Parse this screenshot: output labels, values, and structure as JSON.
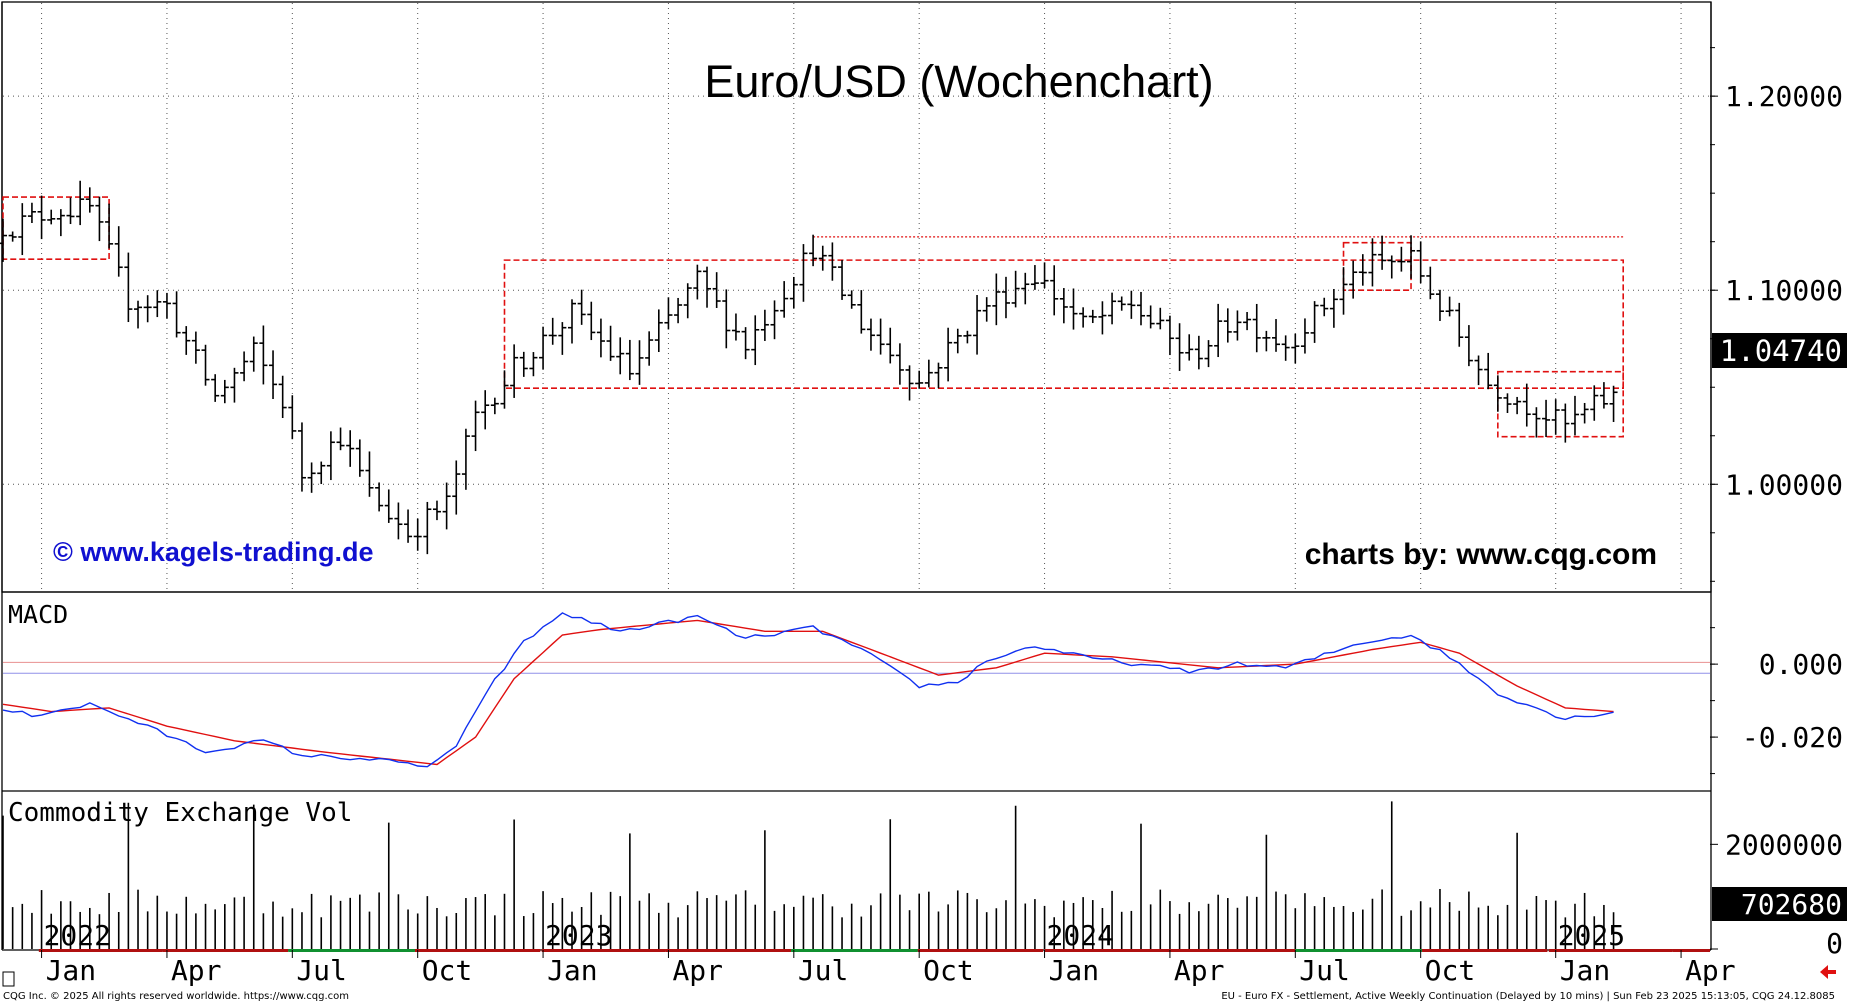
{
  "colors": {
    "bars": "#000000",
    "box": "#e01010",
    "macd": "#1030f0",
    "signal": "#e01010",
    "link": "#1010d0",
    "grid": "#555555",
    "price_tag_bg": "#000000",
    "price_tag_fg": "#ffffff"
  },
  "chart_data": [
    {
      "type": "ohlc",
      "title": "Euro/USD (Wochenchart)",
      "watermark_left": "© www.kagels-trading.de",
      "watermark_right": "charts by: www.cqg.com",
      "y_ticks": [
        "1.20000",
        "1.10000",
        "1.00000"
      ],
      "y_tick_values": [
        1.2,
        1.1,
        1.0
      ],
      "ylim": [
        0.945,
        1.248
      ],
      "last_price": 1.0474,
      "last_price_label": "1.04740",
      "grid": true,
      "anchors": [
        [
          "2021-12-13",
          1.133
        ],
        [
          "2022-01-10",
          1.141
        ],
        [
          "2022-02-07",
          1.142
        ],
        [
          "2022-03-07",
          1.095
        ],
        [
          "2022-04-04",
          1.092
        ],
        [
          "2022-05-09",
          1.045
        ],
        [
          "2022-06-06",
          1.068
        ],
        [
          "2022-06-27",
          1.043
        ],
        [
          "2022-07-11",
          1.005
        ],
        [
          "2022-08-08",
          1.025
        ],
        [
          "2022-08-29",
          0.995
        ],
        [
          "2022-09-26",
          0.975
        ],
        [
          "2022-10-24",
          0.99
        ],
        [
          "2022-11-14",
          1.035
        ],
        [
          "2022-12-12",
          1.06
        ],
        [
          "2023-01-23",
          1.088
        ],
        [
          "2023-03-06",
          1.058
        ],
        [
          "2023-04-24",
          1.105
        ],
        [
          "2023-05-29",
          1.072
        ],
        [
          "2023-07-17",
          1.122
        ],
        [
          "2023-08-21",
          1.083
        ],
        [
          "2023-10-02",
          1.052
        ],
        [
          "2023-11-20",
          1.093
        ],
        [
          "2023-12-25",
          1.108
        ],
        [
          "2024-01-29",
          1.082
        ],
        [
          "2024-03-04",
          1.093
        ],
        [
          "2024-04-15",
          1.065
        ],
        [
          "2024-05-20",
          1.087
        ],
        [
          "2024-06-24",
          1.072
        ],
        [
          "2024-08-19",
          1.112
        ],
        [
          "2024-09-23",
          1.116
        ],
        [
          "2024-10-14",
          1.092
        ],
        [
          "2024-11-18",
          1.052
        ],
        [
          "2025-01-13",
          1.03
        ],
        [
          "2025-02-17",
          1.047
        ]
      ],
      "boxes": [
        {
          "from": "2021-12-06",
          "to": "2022-02-21",
          "high": 1.148,
          "low": 1.116
        },
        {
          "from": "2022-12-05",
          "to": "2025-02-24",
          "high": 1.1155,
          "low": 1.0495
        },
        {
          "from": "2024-08-05",
          "to": "2024-09-23",
          "high": 1.1245,
          "low": 1.1
        },
        {
          "from": "2024-11-25",
          "to": "2025-02-24",
          "high": 1.058,
          "low": 1.0245
        }
      ],
      "lines": [
        {
          "from": "2023-07-17",
          "to": "2025-02-24",
          "value": 1.1275
        }
      ]
    },
    {
      "type": "line",
      "title": "MACD",
      "series": [],
      "y_ticks": [
        "0.000",
        "-0.020"
      ],
      "y_tick_values": [
        0.0,
        -0.02
      ],
      "ylim": [
        -0.0345,
        0.0195
      ],
      "reference_lines": [
        0.0005,
        -0.0025
      ],
      "macd_anchors": [
        [
          "2021-12-06",
          -0.0125
        ],
        [
          "2021-12-27",
          -0.014
        ],
        [
          "2022-02-07",
          -0.011
        ],
        [
          "2022-03-14",
          -0.016
        ],
        [
          "2022-05-02",
          -0.024
        ],
        [
          "2022-06-13",
          -0.021
        ],
        [
          "2022-07-11",
          -0.025
        ],
        [
          "2022-08-29",
          -0.026
        ],
        [
          "2022-10-10",
          -0.028
        ],
        [
          "2022-10-31",
          -0.023
        ],
        [
          "2022-11-21",
          -0.008
        ],
        [
          "2022-12-19",
          0.006
        ],
        [
          "2023-01-16",
          0.014
        ],
        [
          "2023-02-27",
          0.009
        ],
        [
          "2023-04-24",
          0.013
        ],
        [
          "2023-05-29",
          0.007
        ],
        [
          "2023-07-17",
          0.01
        ],
        [
          "2023-08-21",
          0.004
        ],
        [
          "2023-10-02",
          -0.006
        ],
        [
          "2023-10-30",
          -0.005
        ],
        [
          "2023-11-20",
          0.001
        ],
        [
          "2023-12-25",
          0.005
        ],
        [
          "2024-01-29",
          0.002
        ],
        [
          "2024-04-15",
          -0.002
        ],
        [
          "2024-05-20",
          0.0
        ],
        [
          "2024-06-24",
          -0.001
        ],
        [
          "2024-08-19",
          0.006
        ],
        [
          "2024-09-23",
          0.008
        ],
        [
          "2024-10-21",
          0.002
        ],
        [
          "2024-11-25",
          -0.008
        ],
        [
          "2025-01-13",
          -0.015
        ],
        [
          "2025-02-17",
          -0.013
        ]
      ],
      "signal_anchors": [
        [
          "2021-12-06",
          -0.011
        ],
        [
          "2022-01-10",
          -0.013
        ],
        [
          "2022-02-21",
          -0.012
        ],
        [
          "2022-04-04",
          -0.017
        ],
        [
          "2022-05-23",
          -0.021
        ],
        [
          "2022-07-25",
          -0.024
        ],
        [
          "2022-10-17",
          -0.0275
        ],
        [
          "2022-11-14",
          -0.02
        ],
        [
          "2022-12-12",
          -0.004
        ],
        [
          "2023-01-16",
          0.008
        ],
        [
          "2023-02-13",
          0.0095
        ],
        [
          "2023-04-24",
          0.012
        ],
        [
          "2023-06-12",
          0.009
        ],
        [
          "2023-07-24",
          0.009
        ],
        [
          "2023-09-04",
          0.003
        ],
        [
          "2023-10-16",
          -0.003
        ],
        [
          "2023-11-27",
          -0.001
        ],
        [
          "2024-01-01",
          0.003
        ],
        [
          "2024-02-19",
          0.002
        ],
        [
          "2024-05-06",
          -0.001
        ],
        [
          "2024-07-01",
          0.0
        ],
        [
          "2024-08-26",
          0.004
        ],
        [
          "2024-09-30",
          0.006
        ],
        [
          "2024-10-28",
          0.003
        ],
        [
          "2024-12-09",
          -0.006
        ],
        [
          "2025-01-13",
          -0.012
        ],
        [
          "2025-02-17",
          -0.013
        ]
      ]
    },
    {
      "type": "bar",
      "title": "Commodity Exchange Vol",
      "y_ticks": [
        "2000000",
        "0"
      ],
      "y_tick_values": [
        2000000,
        0
      ],
      "ylim": [
        0,
        3000000
      ],
      "last_value": 702680,
      "last_value_label": "702680",
      "base_level": 1000000,
      "spike_level": 2900000
    }
  ],
  "x_axis": {
    "year_labels": [
      {
        "label": "2022",
        "date": "2022-01-03"
      },
      {
        "label": "2023",
        "date": "2023-01-02"
      },
      {
        "label": "2024",
        "date": "2024-01-01"
      },
      {
        "label": "2025",
        "date": "2025-01-06"
      }
    ],
    "month_labels": [
      {
        "label": "Jan",
        "date": "2022-01-03"
      },
      {
        "label": "Apr",
        "date": "2022-04-04"
      },
      {
        "label": "Jul",
        "date": "2022-07-04"
      },
      {
        "label": "Oct",
        "date": "2022-10-03"
      },
      {
        "label": "Jan",
        "date": "2023-01-02"
      },
      {
        "label": "Apr",
        "date": "2023-04-03"
      },
      {
        "label": "Jul",
        "date": "2023-07-03"
      },
      {
        "label": "Oct",
        "date": "2023-10-02"
      },
      {
        "label": "Jan",
        "date": "2024-01-01"
      },
      {
        "label": "Apr",
        "date": "2024-04-01"
      },
      {
        "label": "Jul",
        "date": "2024-07-01"
      },
      {
        "label": "Oct",
        "date": "2024-09-30"
      },
      {
        "label": "Jan",
        "date": "2025-01-06"
      },
      {
        "label": "Apr",
        "date": "2025-04-07"
      }
    ],
    "start_date": "2021-12-06",
    "end_date": "2025-04-28"
  },
  "footer": {
    "left": "CQG Inc. © 2025 All rights reserved worldwide. https://www.cqg.com",
    "right": "EU - Euro FX - Settlement, Active Weekly Continuation (Delayed by 10 mins) | Sun Feb 23 2025 15:13:05, CQG 24.12.8085"
  }
}
